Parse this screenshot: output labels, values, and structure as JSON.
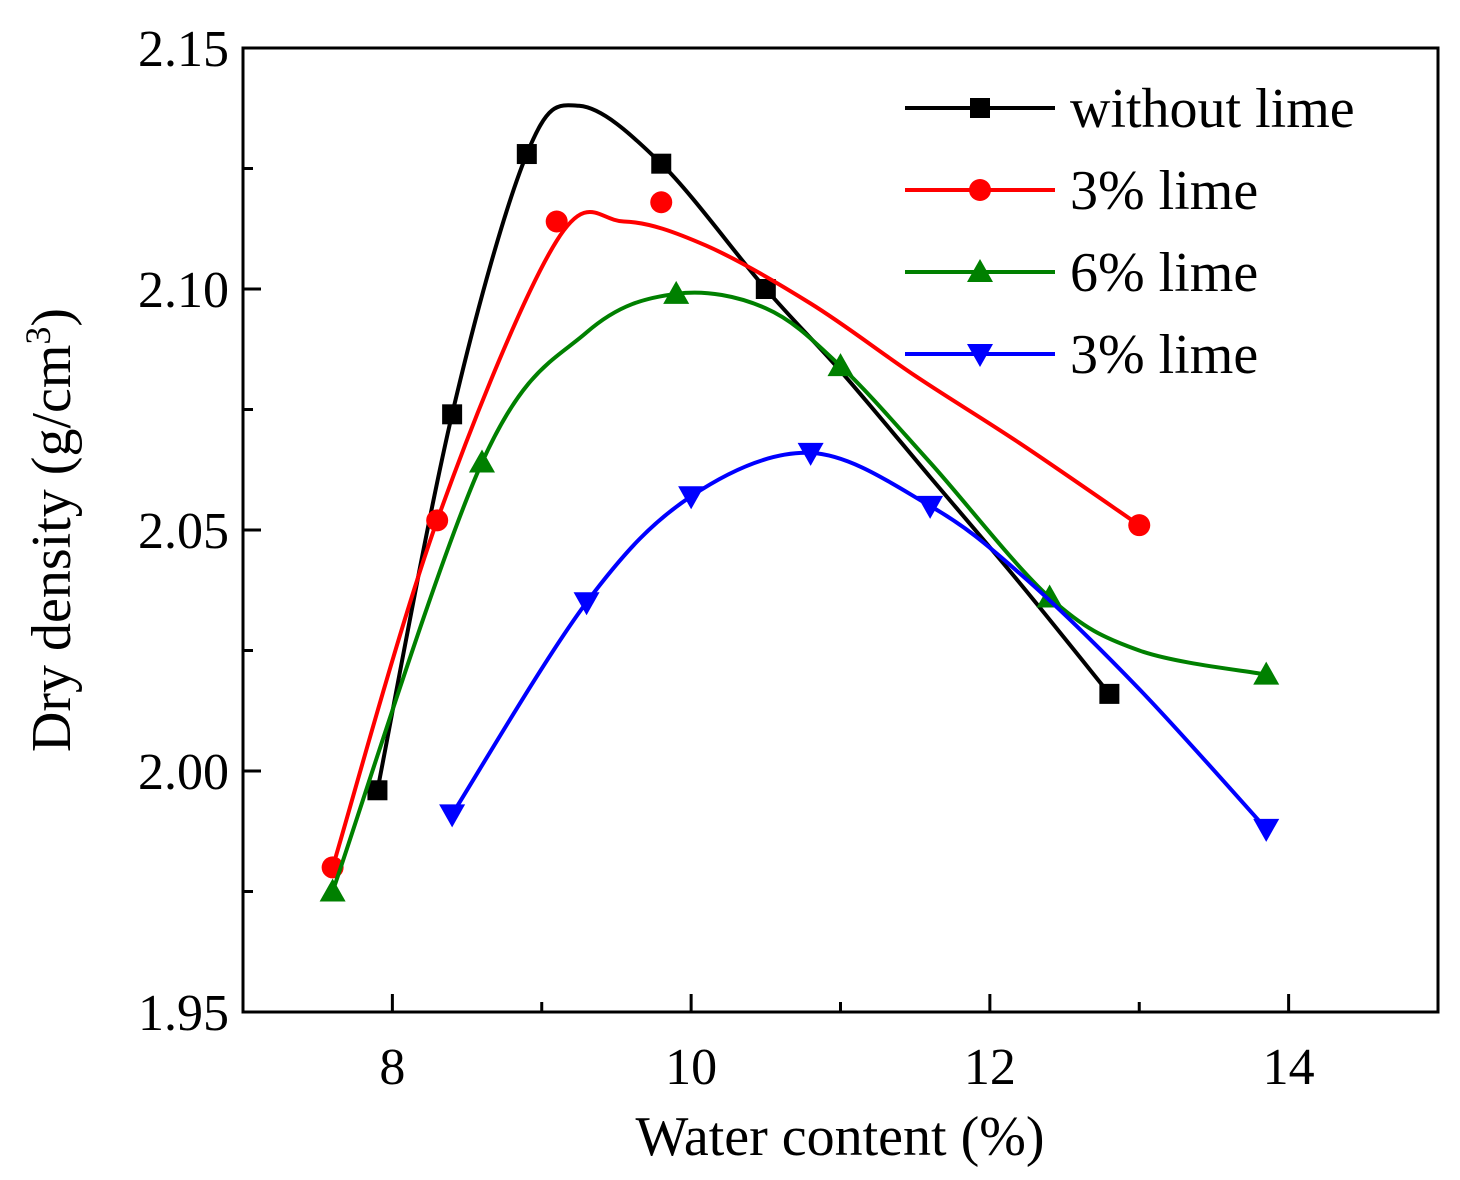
{
  "chart_data": {
    "type": "line",
    "title": "",
    "xlabel": "Water content (%)",
    "ylabel_main": "Dry density (g/cm",
    "ylabel_sup": "3",
    "ylabel_close": ")",
    "xlim": [
      7,
      15
    ],
    "ylim": [
      1.95,
      2.15
    ],
    "xticks": [
      8,
      10,
      12,
      14
    ],
    "xtick_labels": [
      "8",
      "10",
      "12",
      "14"
    ],
    "xminor": [
      9,
      11,
      13
    ],
    "yticks": [
      1.95,
      2.0,
      2.05,
      2.1,
      2.15
    ],
    "ytick_labels": [
      "1.95",
      "2.00",
      "2.05",
      "2.10",
      "2.15"
    ],
    "yminor": [
      1.975,
      2.025,
      2.075,
      2.125
    ],
    "legend_position": "top-right",
    "series": [
      {
        "name": "without lime",
        "color": "#000000",
        "marker": "square",
        "points": [
          [
            7.9,
            1.996
          ],
          [
            8.4,
            2.074
          ],
          [
            8.9,
            2.128
          ],
          [
            9.8,
            2.126
          ],
          [
            10.5,
            2.1
          ],
          [
            12.8,
            2.016
          ]
        ],
        "curve": [
          [
            7.9,
            1.996
          ],
          [
            8.4,
            2.074
          ],
          [
            8.9,
            2.128
          ],
          [
            9.25,
            2.138
          ],
          [
            9.8,
            2.126
          ],
          [
            10.5,
            2.1
          ],
          [
            11.0,
            2.083
          ],
          [
            11.6,
            2.061
          ],
          [
            12.2,
            2.039
          ],
          [
            12.8,
            2.016
          ]
        ]
      },
      {
        "name": "3% lime",
        "color": "#ff0000",
        "marker": "circle",
        "points": [
          [
            7.6,
            1.98
          ],
          [
            8.3,
            2.052
          ],
          [
            9.1,
            2.114
          ],
          [
            9.8,
            2.118
          ],
          [
            13.0,
            2.051
          ]
        ],
        "curve": [
          [
            7.6,
            1.98
          ],
          [
            8.3,
            2.052
          ],
          [
            9.1,
            2.11
          ],
          [
            9.55,
            2.114
          ],
          [
            10.1,
            2.109
          ],
          [
            10.8,
            2.097
          ],
          [
            11.5,
            2.082
          ],
          [
            12.2,
            2.068
          ],
          [
            13.0,
            2.051
          ]
        ]
      },
      {
        "name": "6% lime",
        "color": "#008000",
        "marker": "triangle-up",
        "points": [
          [
            7.6,
            1.975
          ],
          [
            8.6,
            2.064
          ],
          [
            9.9,
            2.099
          ],
          [
            11.0,
            2.084
          ],
          [
            12.4,
            2.036
          ],
          [
            13.85,
            2.02
          ]
        ],
        "curve": [
          [
            7.6,
            1.975
          ],
          [
            8.6,
            2.064
          ],
          [
            9.3,
            2.091
          ],
          [
            9.9,
            2.099
          ],
          [
            10.5,
            2.096
          ],
          [
            11.0,
            2.084
          ],
          [
            11.6,
            2.064
          ],
          [
            12.4,
            2.036
          ],
          [
            13.0,
            2.025
          ],
          [
            13.85,
            2.02
          ]
        ]
      },
      {
        "name": "3% lime",
        "color": "#0000ff",
        "marker": "triangle-down",
        "points": [
          [
            8.4,
            1.991
          ],
          [
            9.3,
            2.035
          ],
          [
            10.0,
            2.057
          ],
          [
            10.8,
            2.066
          ],
          [
            11.6,
            2.055
          ],
          [
            13.85,
            1.988
          ]
        ],
        "curve": [
          [
            8.4,
            1.991
          ],
          [
            9.3,
            2.035
          ],
          [
            10.0,
            2.057
          ],
          [
            10.8,
            2.066
          ],
          [
            11.6,
            2.055
          ],
          [
            12.2,
            2.041
          ],
          [
            13.0,
            2.017
          ],
          [
            13.85,
            1.988
          ]
        ]
      }
    ]
  }
}
